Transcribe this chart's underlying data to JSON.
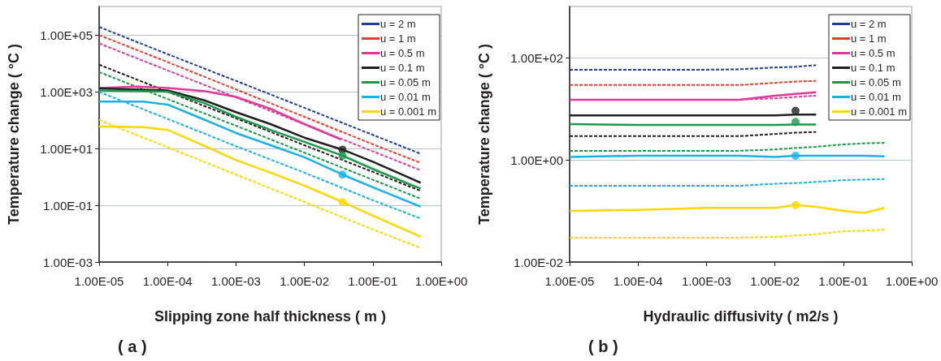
{
  "chart_data": [
    {
      "type": "line",
      "xlabel": "Slipping zone half thickness ( m )",
      "ylabel": "Temperature change ( °C )",
      "annotations": [
        "( a )"
      ],
      "log": "xy",
      "grid": "y",
      "legend": "top right",
      "xlim": [
        1e-05,
        1
      ],
      "ylim": [
        0.001,
        1000000
      ],
      "xticks": [
        {
          "value": 1e-05,
          "label": "1.00E-05"
        },
        {
          "value": 0.0001,
          "label": "1.00E-04"
        },
        {
          "value": 0.001,
          "label": "1.00E-03"
        },
        {
          "value": 0.01,
          "label": "1.00E-02"
        },
        {
          "value": 0.1,
          "label": "1.00E-01"
        },
        {
          "value": 1,
          "label": "1.00E+00"
        }
      ],
      "yticks": [
        {
          "value": 0.001,
          "label": "1.00E-03"
        },
        {
          "value": 0.1,
          "label": "1.00E-01"
        },
        {
          "value": 10,
          "label": "1.00E+01"
        },
        {
          "value": 1000,
          "label": "1.00E+03"
        },
        {
          "value": 100000,
          "label": "1.00E+05"
        }
      ],
      "x": [
        1e-05,
        0.0001,
        0.001,
        0.01,
        0.1,
        0.5
      ],
      "series": [
        {
          "name": "u = 2 m",
          "color": "#1f3d99",
          "line_style": "dashed",
          "values": [
            190000,
            21000,
            2400,
            270,
            30,
            6.5
          ]
        },
        {
          "name": "u = 1 m",
          "color": "#ee3a2a",
          "line_style": "dashed",
          "values": [
            98000,
            11000,
            1200,
            130,
            14,
            3.1
          ]
        },
        {
          "name": "u = 0.5 m",
          "color": "#e0399a",
          "line_style": "solid",
          "x": [
            1e-05,
            3.6e-05,
            0.0001,
            0.00034,
            0.001,
            0.0032,
            0.01,
            0.034
          ],
          "values": [
            1350,
            1500,
            1350,
            1050,
            650,
            250,
            72,
            21
          ]
        },
        {
          "name": "u = 0.1 m",
          "color": "#231f20",
          "line_style": "solid",
          "x": [
            1e-05,
            0.0001,
            0.00034,
            0.001,
            0.0032,
            0.01,
            0.036,
            0.1,
            0.5
          ],
          "values": [
            1300,
            1100,
            500,
            190,
            72,
            24,
            9.1,
            3.4,
            0.62
          ]
        },
        {
          "name": "u = 0.05 m",
          "color": "#1a9a48",
          "line_style": "solid",
          "x": [
            1e-05,
            0.0001,
            0.00034,
            0.001,
            0.0032,
            0.01,
            0.036,
            0.1,
            0.5
          ],
          "values": [
            1100,
            1000,
            400,
            130,
            45,
            17,
            5.6,
            1.9,
            0.38
          ]
        },
        {
          "name": "u = 0.01 m",
          "color": "#18b1e8",
          "line_style": "solid",
          "x": [
            1e-05,
            4.4e-05,
            0.0001,
            0.00034,
            0.001,
            0.0032,
            0.01,
            0.036,
            0.1,
            0.5
          ],
          "values": [
            450,
            450,
            350,
            105,
            35,
            13,
            4.9,
            1.2,
            0.43,
            0.089
          ]
        },
        {
          "name": "u = 0.001 m",
          "color": "#ffd700",
          "line_style": "solid",
          "x": [
            1e-05,
            4.4e-05,
            0.0001,
            0.00042,
            0.001,
            0.0032,
            0.01,
            0.036,
            0.1,
            0.5
          ],
          "values": [
            59,
            56,
            45,
            10,
            3.9,
            1.4,
            0.49,
            0.13,
            0.043,
            0.0078
          ]
        },
        {
          "color": "#e0399a",
          "line_style": "dashed",
          "values": [
            50000,
            5600,
            630,
            71,
            7.9,
            1.7
          ]
        },
        {
          "color": "#231f20",
          "line_style": "dashed",
          "values": [
            8900,
            1000,
            115,
            13,
            1.5,
            0.32
          ]
        },
        {
          "color": "#1a9a48",
          "line_style": "dashed",
          "values": [
            4900,
            550,
            63,
            7.1,
            0.79,
            0.17
          ]
        },
        {
          "color": "#18b1e8",
          "line_style": "dashed",
          "values": [
            980,
            110,
            12,
            1.4,
            0.15,
            0.034
          ]
        },
        {
          "color": "#ffd700",
          "line_style": "dashed",
          "values": [
            100,
            11,
            1.2,
            0.13,
            0.014,
            0.0031
          ]
        },
        {
          "type": "scatter",
          "marker": "circle",
          "x": [
            0.036,
            0.036,
            0.036,
            0.036
          ],
          "values": [
            9.1,
            5.6,
            1.2,
            0.13
          ],
          "colors": [
            "#231f20",
            "#1a9a48",
            "#18b1e8",
            "#ffd700"
          ]
        }
      ]
    },
    {
      "type": "line",
      "xlabel": "Hydraulic diffusivity ( m2/s )",
      "ylabel": "Temperature change ( °C )",
      "annotations": [
        "( b )"
      ],
      "log": "xy",
      "grid": "y",
      "legend": "top right",
      "xlim": [
        1e-05,
        1
      ],
      "ylim": [
        0.01,
        1000
      ],
      "xticks": [
        {
          "value": 1e-05,
          "label": "1.00E-05"
        },
        {
          "value": 0.0001,
          "label": "1.00E-04"
        },
        {
          "value": 0.001,
          "label": "1.00E-03"
        },
        {
          "value": 0.01,
          "label": "1.00E-02"
        },
        {
          "value": 0.1,
          "label": "1.00E-01"
        },
        {
          "value": 1,
          "label": "1.00E+00"
        }
      ],
      "yticks": [
        {
          "value": 0.01,
          "label": "1.00E-02"
        },
        {
          "value": 1,
          "label": "1.00E+00"
        },
        {
          "value": 100,
          "label": "1.00E+02"
        }
      ],
      "x": [
        1e-05,
        0.0001,
        0.001,
        0.003,
        0.01,
        0.02,
        0.04,
        0.1,
        0.2,
        0.4
      ],
      "series": [
        {
          "name": "u = 2 m",
          "color": "#1f3d99",
          "line_style": "dashed",
          "values": [
            58,
            58,
            58,
            59,
            64,
            66,
            71,
            null,
            null,
            null
          ]
        },
        {
          "name": "u = 1 m",
          "color": "#ee3a2a",
          "line_style": "dashed",
          "values": [
            29,
            29,
            29,
            29,
            32,
            34,
            35,
            null,
            null,
            null
          ]
        },
        {
          "name": "u = 0.5 m",
          "color": "#e0399a",
          "line_style": "solid",
          "values": [
            15,
            15,
            15,
            15,
            18,
            19.5,
            21,
            null,
            null,
            null
          ]
        },
        {
          "name": "u = 0.1 m",
          "color": "#231f20",
          "line_style": "solid",
          "values": [
            7.4,
            7.4,
            7.4,
            7.4,
            7.4,
            7.7,
            7.7,
            null,
            null,
            null
          ]
        },
        {
          "name": "u = 0.05 m",
          "color": "#1a9a48",
          "line_style": "solid",
          "values": [
            5.0,
            4.8,
            4.8,
            4.8,
            4.8,
            4.9,
            4.9,
            null,
            null,
            null
          ]
        },
        {
          "name": "u = 0.01 m",
          "color": "#18b1e8",
          "line_style": "solid",
          "values": [
            1.14,
            1.2,
            1.2,
            1.2,
            1.14,
            1.2,
            1.2,
            1.2,
            1.2,
            1.17
          ]
        },
        {
          "name": "u = 0.001 m",
          "color": "#ffd700",
          "line_style": "solid",
          "values": [
            0.1,
            0.105,
            0.115,
            0.115,
            0.115,
            0.13,
            0.12,
            0.1,
            0.091,
            0.115
          ]
        },
        {
          "color": "#e0399a",
          "line_style": "dashed",
          "values": [
            15,
            15,
            15,
            15,
            16,
            17,
            18,
            null,
            null,
            null
          ]
        },
        {
          "color": "#231f20",
          "line_style": "dashed",
          "values": [
            2.9,
            2.9,
            2.9,
            2.9,
            3.2,
            3.4,
            3.5,
            null,
            null,
            null
          ]
        },
        {
          "color": "#1a9a48",
          "line_style": "dashed",
          "values": [
            1.5,
            1.5,
            1.5,
            1.5,
            1.6,
            1.7,
            1.8,
            2.0,
            2.1,
            2.15
          ]
        },
        {
          "color": "#18b1e8",
          "line_style": "dashed",
          "values": [
            0.31,
            0.31,
            0.31,
            0.31,
            0.34,
            0.35,
            0.37,
            0.4,
            0.41,
            0.42
          ]
        },
        {
          "color": "#ffd700",
          "line_style": "dashed",
          "values": [
            0.03,
            0.03,
            0.03,
            0.03,
            0.031,
            0.033,
            0.035,
            0.04,
            0.041,
            0.043
          ]
        },
        {
          "type": "scatter",
          "marker": "circle",
          "x": [
            0.02,
            0.02,
            0.02,
            0.02
          ],
          "values": [
            9.1,
            5.5,
            1.2,
            0.13
          ],
          "colors": [
            "#231f20",
            "#1a9a48",
            "#18b1e8",
            "#ffd700"
          ]
        }
      ]
    }
  ]
}
